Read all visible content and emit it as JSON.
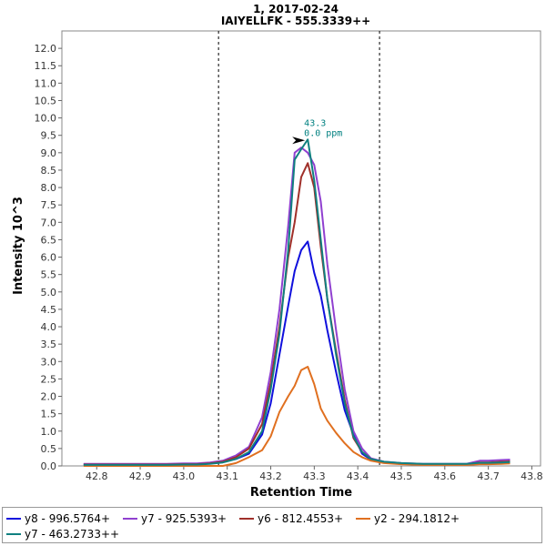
{
  "chart_data": {
    "type": "line",
    "title": "1, 2017-02-24",
    "subtitle": "IAIYELLFK - 555.3339++",
    "xlabel": "Retention Time",
    "ylabel": "Intensity 10^3",
    "xlim": [
      42.72,
      43.82
    ],
    "ylim": [
      0,
      12.5
    ],
    "x_ticks": [
      "42.8",
      "42.9",
      "43.0",
      "43.1",
      "43.2",
      "43.3",
      "43.4",
      "43.5",
      "43.6",
      "43.7",
      "43.8"
    ],
    "y_ticks": [
      "0.0",
      "0.5",
      "1.0",
      "1.5",
      "2.0",
      "2.5",
      "3.0",
      "3.5",
      "4.0",
      "4.5",
      "5.0",
      "5.5",
      "6.0",
      "6.5",
      "7.0",
      "7.5",
      "8.0",
      "8.5",
      "9.0",
      "9.5",
      "10.0",
      "10.5",
      "11.0",
      "11.5",
      "12.0"
    ],
    "integration_bounds": [
      43.08,
      43.45
    ],
    "annotation": {
      "x": 43.285,
      "y": 9.38,
      "line1": "43.3",
      "line2": "0.0 ppm",
      "color": "#008080"
    },
    "x": [
      42.77,
      42.8,
      42.83,
      42.86,
      42.9,
      42.93,
      42.96,
      43.0,
      43.03,
      43.06,
      43.09,
      43.12,
      43.15,
      43.18,
      43.2,
      43.22,
      43.24,
      43.255,
      43.27,
      43.285,
      43.3,
      43.315,
      43.33,
      43.35,
      43.37,
      43.39,
      43.41,
      43.43,
      43.46,
      43.5,
      43.55,
      43.6,
      43.65,
      43.68,
      43.7,
      43.73,
      43.75
    ],
    "series": [
      {
        "name": "y8 - 996.5764+",
        "color": "#1010dd",
        "values": [
          0.05,
          0.05,
          0.05,
          0.05,
          0.05,
          0.05,
          0.05,
          0.06,
          0.06,
          0.08,
          0.12,
          0.2,
          0.35,
          0.9,
          1.8,
          3.2,
          4.6,
          5.6,
          6.2,
          6.45,
          5.55,
          4.9,
          3.9,
          2.7,
          1.6,
          0.9,
          0.35,
          0.18,
          0.1,
          0.07,
          0.05,
          0.05,
          0.05,
          0.08,
          0.08,
          0.09,
          0.1
        ]
      },
      {
        "name": "y7 - 925.5393+",
        "color": "#9040d0",
        "values": [
          0.06,
          0.06,
          0.06,
          0.06,
          0.06,
          0.06,
          0.06,
          0.07,
          0.07,
          0.1,
          0.15,
          0.3,
          0.55,
          1.4,
          2.7,
          4.5,
          6.9,
          9.0,
          9.15,
          9.0,
          8.65,
          7.6,
          5.8,
          3.9,
          2.2,
          1.0,
          0.5,
          0.22,
          0.12,
          0.08,
          0.06,
          0.06,
          0.06,
          0.15,
          0.15,
          0.17,
          0.18
        ]
      },
      {
        "name": "y6 - 812.4553+",
        "color": "#a0302a",
        "values": [
          0.04,
          0.04,
          0.04,
          0.04,
          0.04,
          0.04,
          0.04,
          0.05,
          0.05,
          0.07,
          0.12,
          0.25,
          0.5,
          1.2,
          2.4,
          4.0,
          6.0,
          7.0,
          8.3,
          8.7,
          8.0,
          6.3,
          4.8,
          3.3,
          1.9,
          0.8,
          0.4,
          0.2,
          0.1,
          0.07,
          0.05,
          0.05,
          0.05,
          0.1,
          0.1,
          0.12,
          0.13
        ]
      },
      {
        "name": "y2 - 294.1812+",
        "color": "#e07020",
        "values": [
          0.0,
          0.0,
          0.0,
          0.0,
          0.0,
          0.0,
          0.0,
          0.0,
          0.0,
          0.0,
          0.0,
          0.08,
          0.25,
          0.45,
          0.85,
          1.55,
          2.0,
          2.3,
          2.75,
          2.85,
          2.35,
          1.65,
          1.3,
          0.95,
          0.65,
          0.4,
          0.25,
          0.15,
          0.08,
          0.05,
          0.03,
          0.03,
          0.03,
          0.05,
          0.05,
          0.06,
          0.07
        ]
      },
      {
        "name": "y7 - 463.2733++",
        "color": "#108080",
        "values": [
          0.03,
          0.03,
          0.03,
          0.03,
          0.03,
          0.03,
          0.03,
          0.04,
          0.04,
          0.06,
          0.1,
          0.2,
          0.4,
          1.0,
          2.2,
          3.8,
          6.2,
          8.8,
          9.1,
          9.38,
          8.2,
          6.5,
          4.8,
          3.2,
          1.8,
          0.85,
          0.4,
          0.2,
          0.12,
          0.08,
          0.06,
          0.06,
          0.06,
          0.09,
          0.09,
          0.1,
          0.11
        ]
      }
    ]
  }
}
